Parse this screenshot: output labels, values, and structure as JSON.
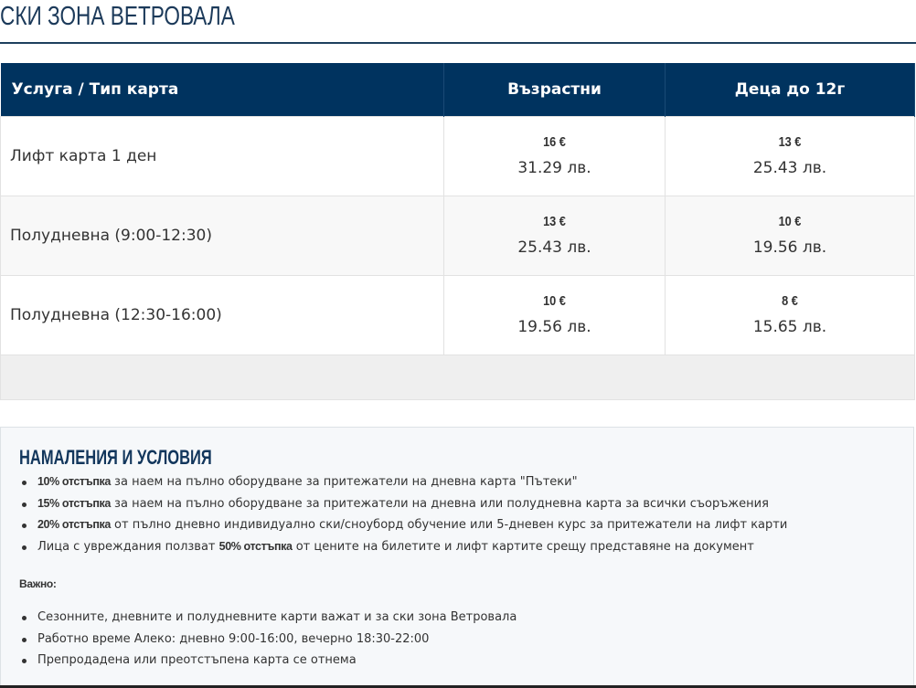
{
  "title": "Ски зона Ветровала",
  "table": {
    "headers": [
      "Услуга / Тип карта",
      "Възрастни",
      "Деца до 12г"
    ],
    "rows": [
      {
        "service": "Лифт карта 1 ден",
        "adult_eur": "16 €",
        "adult_bgn": "31.29 лв.",
        "child_eur": "13 €",
        "child_bgn": "25.43 лв."
      },
      {
        "service": "Полудневна (9:00-12:30)",
        "adult_eur": "13 €",
        "adult_bgn": "25.43 лв.",
        "child_eur": "10 €",
        "child_bgn": "19.56 лв."
      },
      {
        "service": "Полудневна (12:30-16:00)",
        "adult_eur": "10 €",
        "adult_bgn": "19.56 лв.",
        "child_eur": "8 €",
        "child_bgn": "15.65 лв."
      }
    ]
  },
  "discounts": {
    "heading": "Намаления и условия",
    "items": [
      {
        "pre": "",
        "bold": "10% отстъпка",
        "post": " за наем на пълно оборудване за притежатели на дневна карта \"Пътеки\""
      },
      {
        "pre": "",
        "bold": "15% отстъпка",
        "post": " за наем на пълно оборудване за притежатели на дневна или полудневна карта за всички съоръжения"
      },
      {
        "pre": "",
        "bold": "20% отстъпка",
        "post": " от пълно дневно индивидуално ски/сноуборд обучение или 5-дневен курс за притежатели на лифт карти"
      },
      {
        "pre": "Лица с увреждания ползват ",
        "bold": "50% отстъпка",
        "post": " от цените на билетите и лифт картите срещу представяне на документ"
      }
    ],
    "important_label": "Важно:",
    "notes": [
      "Сезонните, дневните и полудневните карти важат и за ски зона Ветровала",
      "Работно време Алеко: дневно 9:00-16:00, вечерно 18:30-22:00",
      "Препродадена или преотстъпена карта се отнема"
    ]
  },
  "colors": {
    "header_bg": "#00335f",
    "title": "#1c3a5a"
  }
}
